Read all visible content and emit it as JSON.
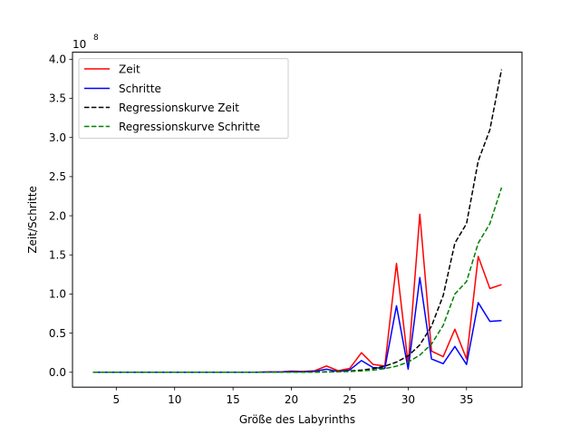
{
  "chart_data": {
    "type": "line",
    "title": "",
    "xlabel": "Größe des Labyrinths",
    "ylabel": "Zeit/Schritte",
    "offset_text": {
      "base": "10",
      "exponent": "8"
    },
    "xlim": [
      1.25,
      39.75
    ],
    "ylim": [
      -0.19,
      4.09
    ],
    "xticks": [
      5,
      10,
      15,
      20,
      25,
      30,
      35
    ],
    "xtick_labels": [
      "5",
      "10",
      "15",
      "20",
      "25",
      "30",
      "35"
    ],
    "yticks": [
      0.0,
      0.5,
      1.0,
      1.5,
      2.0,
      2.5,
      3.0,
      3.5,
      4.0
    ],
    "ytick_labels": [
      "0.0",
      "0.5",
      "1.0",
      "1.5",
      "2.0",
      "2.5",
      "3.0",
      "3.5",
      "4.0"
    ],
    "grid": false,
    "legend_position": "top-left",
    "x": [
      3,
      4,
      5,
      6,
      7,
      8,
      9,
      10,
      11,
      12,
      13,
      14,
      15,
      16,
      17,
      18,
      19,
      20,
      21,
      22,
      23,
      24,
      25,
      26,
      27,
      28,
      29,
      30,
      31,
      32,
      33,
      34,
      35,
      36,
      37,
      38
    ],
    "series": [
      {
        "name": "Zeit",
        "color": "#ff0000",
        "style": "solid",
        "values": [
          0,
          0,
          0,
          0,
          0,
          0,
          0,
          0,
          0,
          0,
          0,
          0,
          0,
          0,
          0,
          0.005,
          0.005,
          0.015,
          0.01,
          0.02,
          0.08,
          0.02,
          0.05,
          0.25,
          0.1,
          0.08,
          1.39,
          0.1,
          2.02,
          0.27,
          0.2,
          0.55,
          0.17,
          1.48,
          1.07,
          1.12
        ]
      },
      {
        "name": "Schritte",
        "color": "#0000ff",
        "style": "solid",
        "values": [
          0,
          0,
          0,
          0,
          0,
          0,
          0,
          0,
          0,
          0,
          0,
          0,
          0,
          0,
          0,
          0.003,
          0.003,
          0.008,
          0.006,
          0.012,
          0.04,
          0.01,
          0.03,
          0.15,
          0.06,
          0.05,
          0.85,
          0.04,
          1.21,
          0.17,
          0.11,
          0.33,
          0.1,
          0.89,
          0.65,
          0.66
        ]
      },
      {
        "name": "Regressionskurve Zeit",
        "color": "#000000",
        "style": "dashed",
        "values": [
          0,
          0,
          0,
          0,
          0,
          0,
          0,
          0,
          0,
          0,
          0,
          0,
          0,
          0,
          0,
          0,
          0,
          0.001,
          0.002,
          0.004,
          0.006,
          0.01,
          0.017,
          0.028,
          0.047,
          0.078,
          0.13,
          0.21,
          0.35,
          0.59,
          0.98,
          1.65,
          1.9,
          2.7,
          3.1,
          3.87
        ]
      },
      {
        "name": "Regressionskurve Schritte",
        "color": "#008000",
        "style": "dashed",
        "values": [
          0,
          0,
          0,
          0,
          0,
          0,
          0,
          0,
          0,
          0,
          0,
          0,
          0,
          0,
          0,
          0,
          0,
          0.001,
          0.001,
          0.002,
          0.004,
          0.006,
          0.01,
          0.017,
          0.028,
          0.047,
          0.078,
          0.13,
          0.22,
          0.36,
          0.6,
          1.0,
          1.16,
          1.65,
          1.9,
          2.36
        ]
      }
    ]
  }
}
